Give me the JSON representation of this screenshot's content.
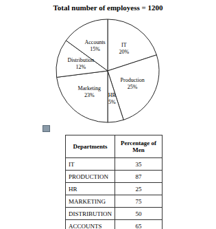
{
  "chart_data": {
    "type": "pie",
    "title": "Total number of employess = 1200",
    "categories": [
      "IT",
      "Production",
      "HR",
      "Marketing",
      "Distribution",
      "Accounts"
    ],
    "values": [
      20,
      25,
      5,
      23,
      12,
      15
    ],
    "value_labels": [
      "20%",
      "25%",
      "5%",
      "23%",
      "12%",
      "15%"
    ],
    "colors": [
      "#ffffff",
      "#ffffff",
      "#ffffff",
      "#ffffff",
      "#ffffff",
      "#ffffff"
    ],
    "data_labels": true
  },
  "table": {
    "header": [
      "Departments",
      "Percentage of Men"
    ],
    "rows": [
      [
        "IT",
        35
      ],
      [
        "PRODUCTION",
        87
      ],
      [
        "HR",
        25
      ],
      [
        "MARKETING",
        75
      ],
      [
        "DISTRIBUTION",
        50
      ],
      [
        "ACCOUNTS",
        65
      ]
    ]
  }
}
